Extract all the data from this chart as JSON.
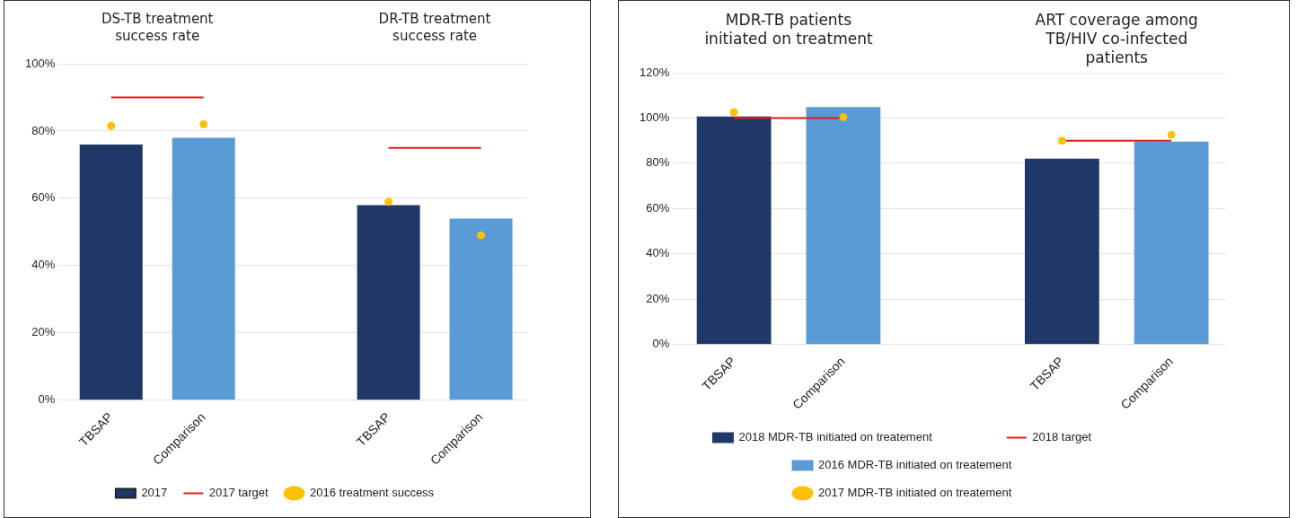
{
  "chart_data": [
    {
      "type": "bar",
      "categories": [
        "TBSAP",
        "Comparison",
        null,
        "TBSAP",
        "Comparison"
      ],
      "series": [
        {
          "name": "2017",
          "color": "#1f3868",
          "colors": [
            "#1f3868",
            "#5b9bd5",
            null,
            "#1f3868",
            "#5b9bd5"
          ],
          "values": [
            76,
            78,
            null,
            58,
            54
          ]
        },
        {
          "type": "line",
          "name": "2017 target",
          "color": "#e31a1c",
          "values": [
            90,
            90,
            null,
            75,
            75
          ]
        },
        {
          "type": "scatter",
          "name": "2016 treatment success",
          "color": "#ffc000",
          "values": [
            81.5,
            82,
            null,
            59,
            49
          ]
        }
      ],
      "annotations": [
        "DS-TB treatment success rate",
        "DR-TB treatment success rate"
      ],
      "ylim": [
        0,
        100
      ],
      "yticks": [
        {
          "value": 0,
          "label": "0%"
        },
        {
          "value": 20,
          "label": "20%"
        },
        {
          "value": 40,
          "label": "40%"
        },
        {
          "value": 60,
          "label": "60%"
        },
        {
          "value": 80,
          "label": "80%"
        },
        {
          "value": 100,
          "label": "100%"
        }
      ],
      "grid": "y",
      "legend": "bottom"
    },
    {
      "type": "bar",
      "categories": [
        "TBSAP",
        "Comparison",
        null,
        "TBSAP",
        "Comparison"
      ],
      "series": [
        {
          "name": "2018 MDR-TB initiated on treatement",
          "color": "#1f3868",
          "values": [
            100.7,
            null,
            null,
            82,
            null
          ]
        },
        {
          "type": "line",
          "name": "2018 target",
          "color": "#e31a1c",
          "values": [
            100,
            100,
            null,
            90,
            90
          ]
        },
        {
          "name": "2016 MDR-TB initiated on treatement",
          "color": "#5b9bd5",
          "values": [
            null,
            104.8,
            null,
            null,
            89.6
          ]
        },
        {
          "type": "scatter",
          "name": "2017 MDR-TB initiated on treatement",
          "color": "#ffc000",
          "values": [
            102.6,
            100.4,
            null,
            90,
            92.6
          ]
        }
      ],
      "annotations": [
        "MDR-TB patients initiated on treatment",
        "ART coverage among TB/HIV co-infected patients"
      ],
      "ylim": [
        0,
        120
      ],
      "yticks": [
        {
          "value": 0,
          "label": "0%"
        },
        {
          "value": 20,
          "label": "20%"
        },
        {
          "value": 40,
          "label": "40%"
        },
        {
          "value": 60,
          "label": "60%"
        },
        {
          "value": 80,
          "label": "80%"
        },
        {
          "value": 100,
          "label": "100%"
        },
        {
          "value": 120,
          "label": "120%"
        }
      ],
      "grid": "y",
      "legend": "bottom"
    }
  ]
}
